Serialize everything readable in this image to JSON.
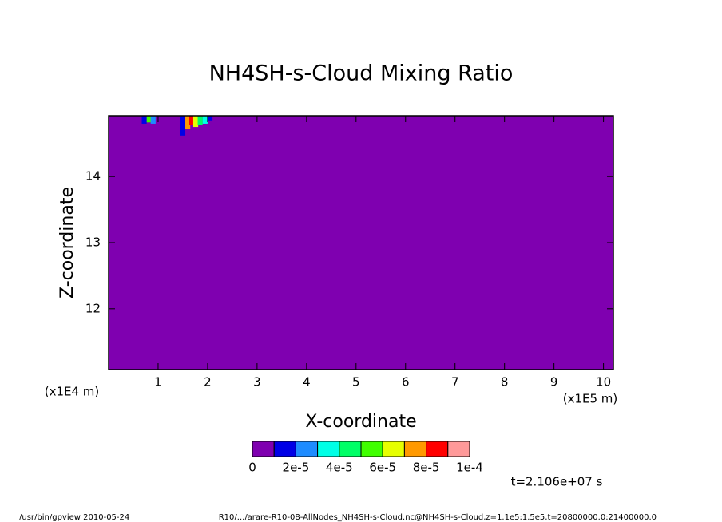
{
  "chart_data": {
    "type": "contour",
    "title": "NH4SH-s-Cloud Mixing Ratio",
    "x_label": "X-coordinate",
    "y_label": "Z-coordinate",
    "x_unit": "(x1E5 m)",
    "y_unit": "(x1E4 m)",
    "xlim": [
      0,
      10.2
    ],
    "xticks": [
      1,
      2,
      3,
      4,
      5,
      6,
      7,
      8,
      9,
      10
    ],
    "ylim": [
      11.08,
      14.92
    ],
    "yticks": [
      12,
      13,
      14
    ],
    "clim": [
      0,
      0.0001
    ],
    "colors": [
      "#7f00b0",
      "#0000e6",
      "#1e8cff",
      "#00ffe6",
      "#00ff66",
      "#40ff00",
      "#e6ff00",
      "#ff9900",
      "#ff0000",
      "#ff9999"
    ],
    "colorticks": [
      {
        "value": 0,
        "label": "0"
      },
      {
        "value": 2e-05,
        "label": "2e-5"
      },
      {
        "value": 4e-05,
        "label": "4e-5"
      },
      {
        "value": 6e-05,
        "label": "6e-5"
      },
      {
        "value": 8e-05,
        "label": "8e-5"
      },
      {
        "value": 0.0001,
        "label": "1e-4"
      }
    ],
    "cells": [
      {
        "x": 0.72,
        "z": 14.8,
        "value": 1.5e-05
      },
      {
        "x": 0.82,
        "z": 14.82,
        "value": 5e-05
      },
      {
        "x": 0.9,
        "z": 14.8,
        "value": 2e-05
      },
      {
        "x": 1.5,
        "z": 14.62,
        "value": 1.5e-05
      },
      {
        "x": 1.6,
        "z": 14.72,
        "value": 7e-05
      },
      {
        "x": 1.68,
        "z": 14.78,
        "value": 8.5e-05
      },
      {
        "x": 1.76,
        "z": 14.75,
        "value": 6e-05
      },
      {
        "x": 1.85,
        "z": 14.78,
        "value": 4e-05
      },
      {
        "x": 1.95,
        "z": 14.8,
        "value": 3e-05
      },
      {
        "x": 2.05,
        "z": 14.85,
        "value": 1.5e-05
      }
    ],
    "annotation": "t=2.106e+07 s",
    "footer_left": "/usr/bin/gpview  2010-05-24",
    "footer_right": "R10/.../arare-R10-08-AllNodes_NH4SH-s-Cloud.nc@NH4SH-s-Cloud,z=1.1e5:1.5e5,t=20800000.0:21400000.0"
  }
}
